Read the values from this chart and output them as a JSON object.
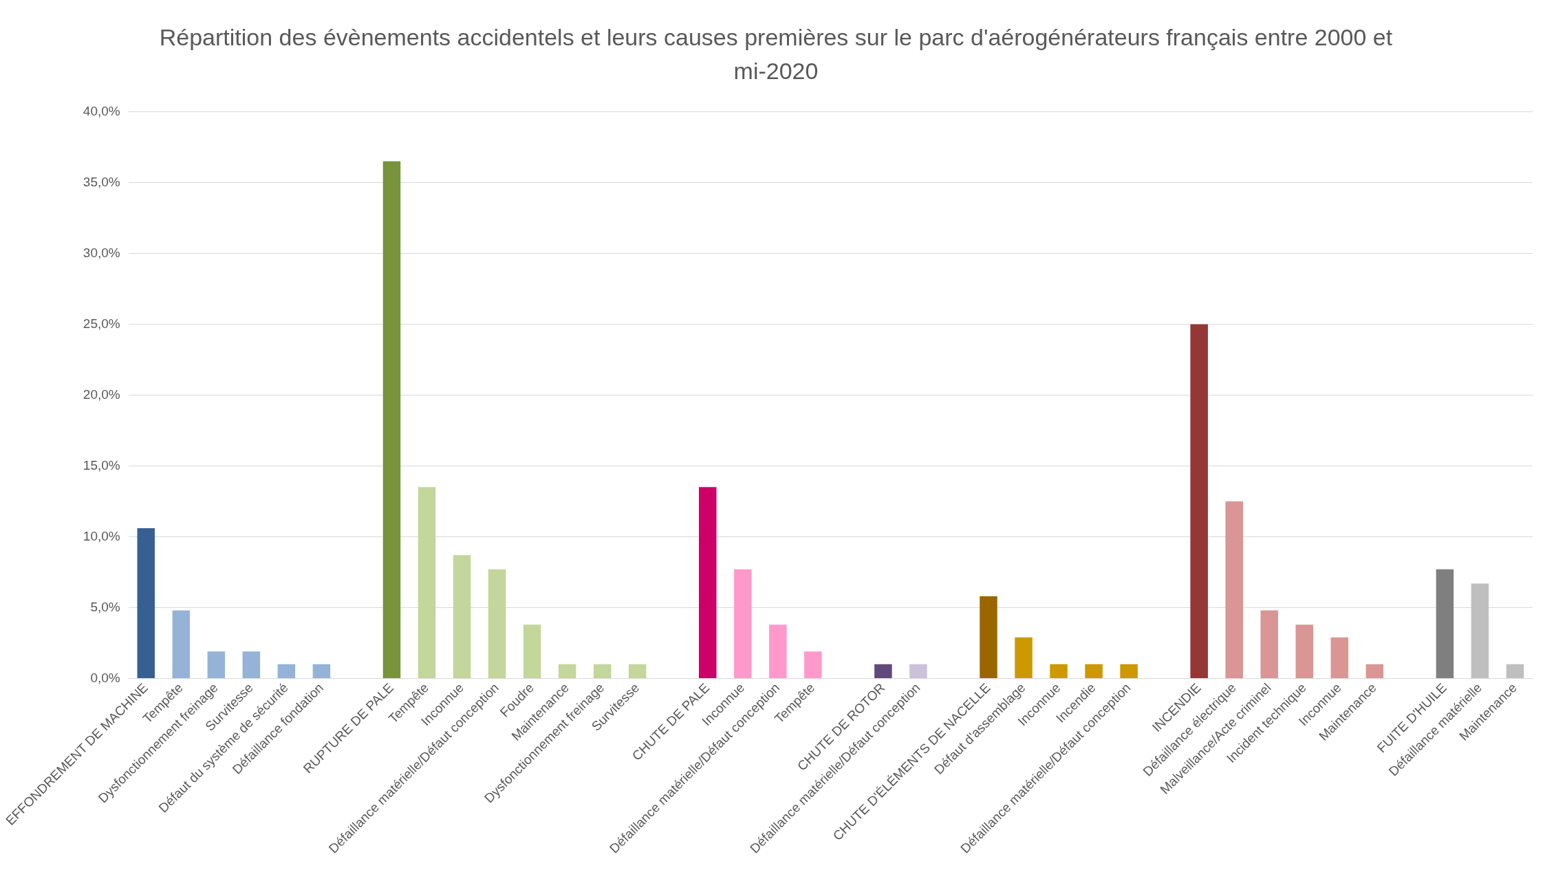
{
  "chart_data": {
    "type": "bar",
    "title": "Répartition des évènements accidentels et leurs causes premières sur le parc d'aérogénérateurs français entre 2000 et mi-2020",
    "categories": [
      "EFFONDREMENT DE MACHINE",
      "Tempête",
      "Dysfonctionnement freinage",
      "Survitesse",
      "Défaut du système de sécurité",
      "Défaillance fondation",
      null,
      "RUPTURE DE PALE",
      "Tempête",
      "Inconnue",
      "Défaillance matérielle/Défaut conception",
      "Foudre",
      "Maintenance",
      "Dysfonctionnement freinage",
      "Survitesse",
      null,
      "CHUTE DE PALE",
      "Inconnue",
      "Défaillance matérielle/Défaut conception",
      "Tempête",
      null,
      "CHUTE DE ROTOR",
      "Défaillance matérielle/Défaut conception",
      null,
      "CHUTE D'ÉLÉMENTS DE NACELLE",
      "Défaut d'assemblage",
      "Inconnue",
      "Incendie",
      "Défaillance matérielle/Défaut conception",
      null,
      "INCENDIE",
      "Défaillance électrique",
      "Malveillance/Acte criminel",
      "Incident technique",
      "Inconnue",
      "Maintenance",
      null,
      "FUITE D'HUILE",
      "Défaillance matérielle",
      "Maintenance"
    ],
    "values": [
      10.6,
      4.8,
      1.9,
      1.9,
      1.0,
      1.0,
      null,
      36.5,
      13.5,
      8.7,
      7.7,
      3.8,
      1.0,
      1.0,
      1.0,
      null,
      13.5,
      7.7,
      3.8,
      1.9,
      null,
      1.0,
      1.0,
      null,
      5.8,
      2.9,
      1.0,
      1.0,
      1.0,
      null,
      25.0,
      12.5,
      4.8,
      3.8,
      2.9,
      1.0,
      null,
      7.7,
      6.7,
      1.0
    ],
    "colors": [
      "#376092",
      "#95b3d7",
      "#95b3d7",
      "#95b3d7",
      "#95b3d7",
      "#95b3d7",
      null,
      "#77933c",
      "#c3d69b",
      "#c3d69b",
      "#c3d69b",
      "#c3d69b",
      "#c3d69b",
      "#c3d69b",
      "#c3d69b",
      null,
      "#cc0066",
      "#ff99cc",
      "#ff99cc",
      "#ff99cc",
      null,
      "#604a7b",
      "#ccc1da",
      null,
      "#996600",
      "#cc9900",
      "#cc9900",
      "#cc9900",
      "#cc9900",
      null,
      "#953735",
      "#d99694",
      "#d99694",
      "#d99694",
      "#d99694",
      "#d99694",
      null,
      "#7f7f7f",
      "#bfbfbf",
      "#bfbfbf"
    ],
    "ylim": [
      0,
      40
    ],
    "yticks": [
      {
        "value": 0,
        "label": "0,0%"
      },
      {
        "value": 5,
        "label": "5,0%"
      },
      {
        "value": 10,
        "label": "10,0%"
      },
      {
        "value": 15,
        "label": "15,0%"
      },
      {
        "value": 20,
        "label": "20,0%"
      },
      {
        "value": 25,
        "label": "25,0%"
      },
      {
        "value": 30,
        "label": "30,0%"
      },
      {
        "value": 35,
        "label": "35,0%"
      },
      {
        "value": 40,
        "label": "40,0%"
      }
    ],
    "grid": "y",
    "legend": false
  }
}
